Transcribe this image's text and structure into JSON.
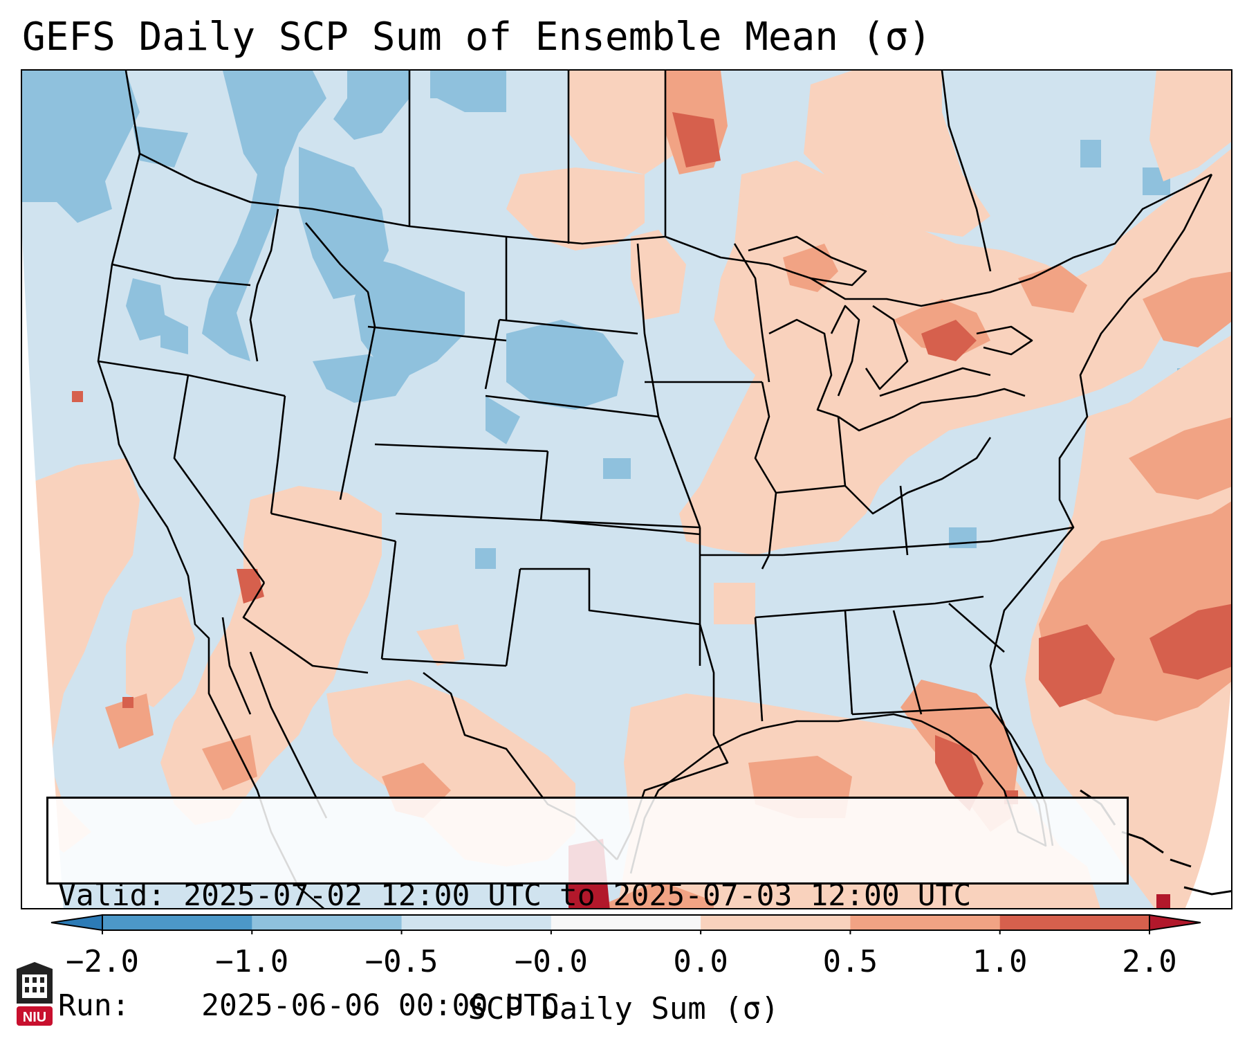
{
  "title": "GEFS Daily SCP Sum of Ensemble Mean (σ)",
  "info": {
    "valid_label": "Valid:",
    "valid_value": "2025-07-02 12:00 UTC to 2025-07-03 12:00 UTC",
    "run_label": "Run:",
    "run_value": "2025-06-06 00:00 UTC"
  },
  "colorbar": {
    "label": "SCP Daily Sum (σ)",
    "ticks": [
      "−2.0",
      "−1.0",
      "−0.5",
      "−0.0",
      "0.0",
      "0.5",
      "1.0",
      "2.0"
    ],
    "bins": [
      {
        "range": "< -2.0",
        "color": "#2c7bb6"
      },
      {
        "range": "-2.0 to -1.0",
        "color": "#4c98c8"
      },
      {
        "range": "-1.0 to -0.5",
        "color": "#8fc1dd"
      },
      {
        "range": "-0.5 to -0.0",
        "color": "#d0e3ef"
      },
      {
        "range": "-0.0 to 0.0",
        "color": "#f7f7f7"
      },
      {
        "range": "0.0 to 0.5",
        "color": "#f9d2bd"
      },
      {
        "range": "0.5 to 1.0",
        "color": "#f1a384"
      },
      {
        "range": "1.0 to 2.0",
        "color": "#d6604d"
      },
      {
        "range": "> 2.0",
        "color": "#b2182b"
      }
    ]
  },
  "logo": {
    "text": "NIU",
    "color": "#c8102e"
  },
  "colors": {
    "ocean_outside": "#ffffff",
    "state_lines": "#000000"
  }
}
